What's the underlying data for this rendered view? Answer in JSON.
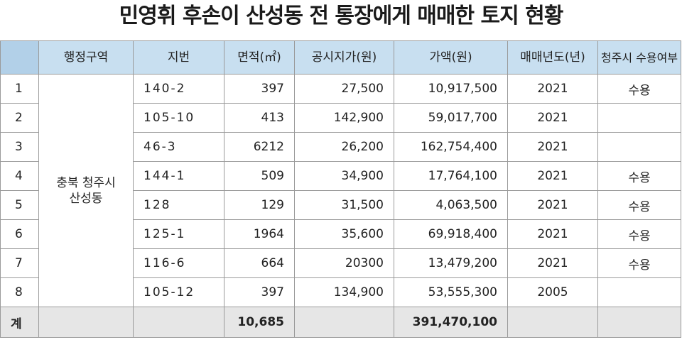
{
  "title": "민영휘 후손이 산성동 전 통장에게 매매한 토지 현황",
  "columns": [
    "",
    "행정구역",
    "지번",
    "면적(㎡)",
    "공시지가(원)",
    "가액(원)",
    "매매년도(년)",
    "청주시 수용여부"
  ],
  "region": "충북 청주시 산성동",
  "rows": [
    {
      "no": "1",
      "lot": "140-2",
      "area": "397",
      "official_price": "27,500",
      "value": "10,917,500",
      "year": "2021",
      "expropriated": "수용"
    },
    {
      "no": "2",
      "lot": "105-10",
      "area": "413",
      "official_price": "142,900",
      "value": "59,017,700",
      "year": "2021",
      "expropriated": ""
    },
    {
      "no": "3",
      "lot": "46-3",
      "area": "6212",
      "official_price": "26,200",
      "value": "162,754,400",
      "year": "2021",
      "expropriated": ""
    },
    {
      "no": "4",
      "lot": "144-1",
      "area": "509",
      "official_price": "34,900",
      "value": "17,764,100",
      "year": "2021",
      "expropriated": "수용"
    },
    {
      "no": "5",
      "lot": "128",
      "area": "129",
      "official_price": "31,500",
      "value": "4,063,500",
      "year": "2021",
      "expropriated": "수용"
    },
    {
      "no": "6",
      "lot": "125-1",
      "area": "1964",
      "official_price": "35,600",
      "value": "69,918,400",
      "year": "2021",
      "expropriated": "수용"
    },
    {
      "no": "7",
      "lot": "116-6",
      "area": "664",
      "official_price": "20300",
      "value": "13,479,200",
      "year": "2021",
      "expropriated": "수용"
    },
    {
      "no": "8",
      "lot": "105-12",
      "area": "397",
      "official_price": "134,900",
      "value": "53,555,300",
      "year": "2005",
      "expropriated": ""
    }
  ],
  "total": {
    "label": "계",
    "area": "10,685",
    "value": "391,470,100"
  },
  "colors": {
    "header_bg": "#c8dff0",
    "total_bg": "#e6e6e6",
    "border": "#9a9a9a"
  }
}
